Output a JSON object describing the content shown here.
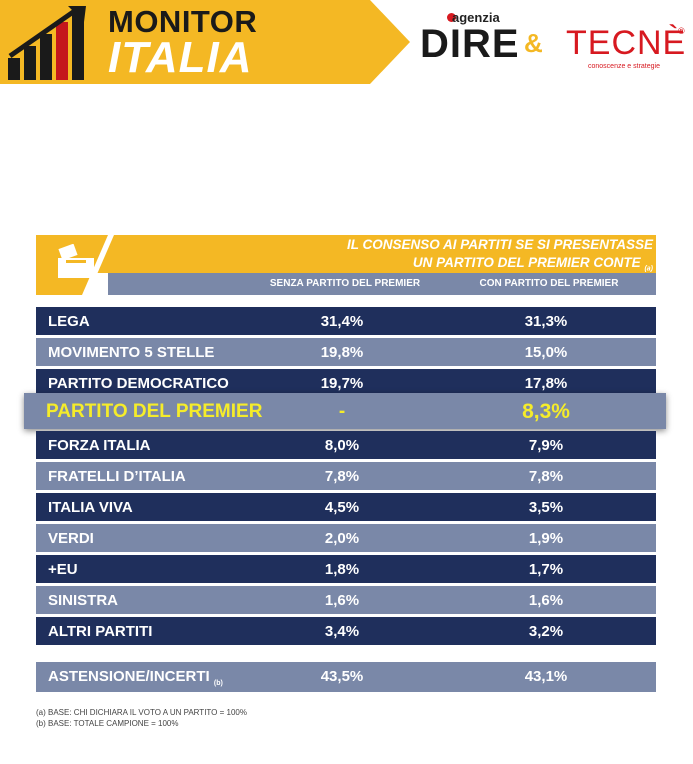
{
  "header": {
    "brand_top": "MONITOR",
    "brand_bottom": "ITALIA",
    "partner1_small": "agenzia",
    "partner1_big": "DIRE",
    "ampersand": "&",
    "partner2_big": "TECNÈ",
    "partner2_reg": "®",
    "partner2_sub": "conoscenze e strategie",
    "brand_color": "#f4b824"
  },
  "table": {
    "title_line1": "IL CONSENSO AI PARTITI SE SI PRESENTASSE",
    "title_line2": "UN PARTITO DEL PREMIER CONTE",
    "title_note": "(a)",
    "col1": "SENZA PARTITO DEL PREMIER",
    "col2": "CON PARTITO DEL PREMIER",
    "total_label": "ASTENSIONE/INCERTI",
    "total_note": "(b)",
    "total_v1": "43,5%",
    "total_v2": "43,1%"
  },
  "footnotes": {
    "a": "(a)   BASE: CHI DICHIARA IL VOTO A UN PARTITO = 100%",
    "b": "(b)   BASE: TOTALE CAMPIONE = 100%"
  },
  "chart_data": {
    "type": "table",
    "title": "IL CONSENSO AI PARTITI SE SI PRESENTASSE UN PARTITO DEL PREMIER CONTE",
    "columns": [
      "SENZA PARTITO DEL PREMIER",
      "CON PARTITO DEL PREMIER"
    ],
    "rows": [
      {
        "party": "LEGA",
        "v1": "31,4%",
        "v2": "31,3%"
      },
      {
        "party": "MOVIMENTO 5 STELLE",
        "v1": "19,8%",
        "v2": "15,0%"
      },
      {
        "party": "PARTITO DEMOCRATICO",
        "v1": "19,7%",
        "v2": "17,8%"
      },
      {
        "party": "PARTITO DEL PREMIER",
        "v1": "-",
        "v2": "8,3%"
      },
      {
        "party": "FORZA ITALIA",
        "v1": "8,0%",
        "v2": "7,9%"
      },
      {
        "party": "FRATELLI D’ITALIA",
        "v1": "7,8%",
        "v2": "7,8%"
      },
      {
        "party": "ITALIA VIVA",
        "v1": "4,5%",
        "v2": "3,5%"
      },
      {
        "party": "VERDI",
        "v1": "2,0%",
        "v2": "1,9%"
      },
      {
        "party": "+EU",
        "v1": "1,8%",
        "v2": "1,7%"
      },
      {
        "party": "SINISTRA",
        "v1": "1,6%",
        "v2": "1,6%"
      },
      {
        "party": "ALTRI PARTITI",
        "v1": "3,4%",
        "v2": "3,2%"
      }
    ],
    "colors": {
      "dark_row": "#1f2f5c",
      "light_row": "#7a88a8",
      "highlight_text": "#f5ec2a"
    }
  }
}
